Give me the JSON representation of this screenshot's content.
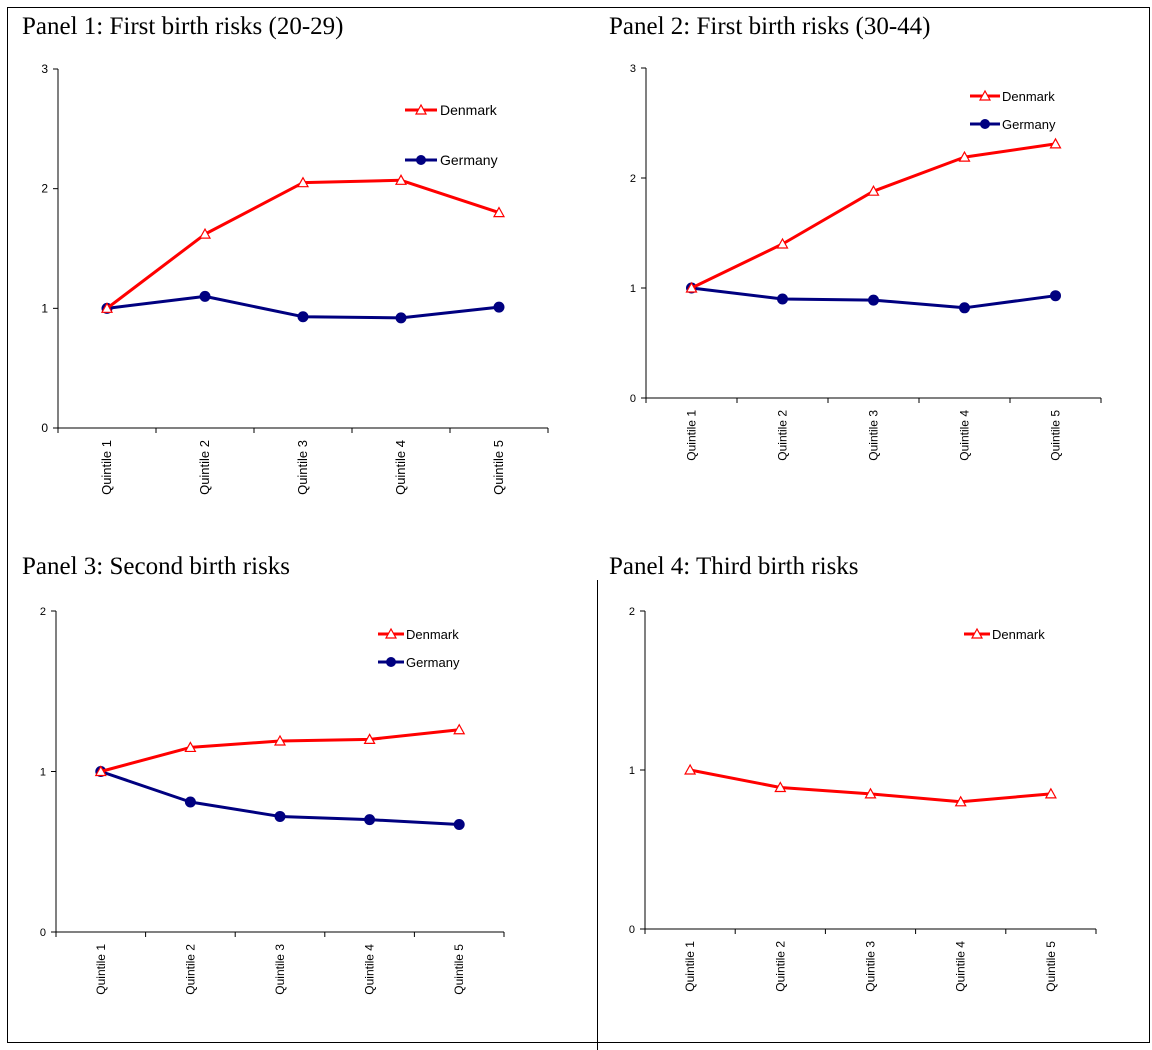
{
  "colors": {
    "denmark": "#ff0000",
    "germany": "#000080"
  },
  "chart_data": [
    {
      "type": "line",
      "title": "Panel 1: First birth risks (20-29)",
      "categories": [
        "Quintile 1",
        "Quintile 2",
        "Quintile 3",
        "Quintile 4",
        "Quintile 5"
      ],
      "ylim": [
        0,
        3
      ],
      "yticks": [
        "0",
        "1",
        "2",
        "3"
      ],
      "legend_placement": "top-right",
      "grid": false,
      "series": [
        {
          "name": "Denmark",
          "marker": "triangle-open",
          "values": [
            1.0,
            1.62,
            2.05,
            2.07,
            1.8
          ]
        },
        {
          "name": "Germany",
          "marker": "circle-filled",
          "values": [
            1.0,
            1.1,
            0.93,
            0.92,
            1.01
          ]
        }
      ]
    },
    {
      "type": "line",
      "title": "Panel 2: First birth risks (30-44)",
      "categories": [
        "Quintile 1",
        "Quintile 2",
        "Quintile 3",
        "Quintile 4",
        "Quintile 5"
      ],
      "ylim": [
        0,
        3
      ],
      "yticks": [
        "0",
        "1",
        "2",
        "3"
      ],
      "legend_placement": "top-right",
      "grid": false,
      "series": [
        {
          "name": "Denmark",
          "marker": "triangle-open",
          "values": [
            1.0,
            1.4,
            1.88,
            2.19,
            2.31
          ]
        },
        {
          "name": "Germany",
          "marker": "circle-filled",
          "values": [
            1.0,
            0.9,
            0.89,
            0.82,
            0.93
          ]
        }
      ]
    },
    {
      "type": "line",
      "title": "Panel 3: Second birth risks",
      "categories": [
        "Quintile 1",
        "Quintile 2",
        "Quintile 3",
        "Quintile 4",
        "Quintile 5"
      ],
      "ylim": [
        0,
        2
      ],
      "yticks": [
        "0",
        "1",
        "2"
      ],
      "legend_placement": "top-right",
      "grid": false,
      "series": [
        {
          "name": "Denmark",
          "marker": "triangle-open",
          "values": [
            1.0,
            1.15,
            1.19,
            1.2,
            1.26
          ]
        },
        {
          "name": "Germany",
          "marker": "circle-filled",
          "values": [
            1.0,
            0.81,
            0.72,
            0.7,
            0.67
          ]
        }
      ]
    },
    {
      "type": "line",
      "title": "Panel 4: Third birth risks",
      "categories": [
        "Quintile 1",
        "Quintile 2",
        "Quintile 3",
        "Quintile 4",
        "Quintile 5"
      ],
      "ylim": [
        0,
        2
      ],
      "yticks": [
        "0",
        "1",
        "2"
      ],
      "legend_placement": "top-right",
      "grid": false,
      "series": [
        {
          "name": "Denmark",
          "marker": "triangle-open",
          "values": [
            1.0,
            0.89,
            0.85,
            0.8,
            0.85
          ]
        }
      ]
    }
  ]
}
